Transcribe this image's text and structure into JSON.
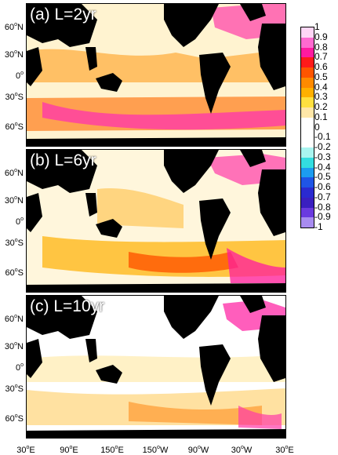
{
  "panels": [
    {
      "label": "(a) L=2yr"
    },
    {
      "label": "(b) L=6yr"
    },
    {
      "label": "(c) L=10yr"
    }
  ],
  "lat_ticks": [
    {
      "deg": "60",
      "hem": "N"
    },
    {
      "deg": "30",
      "hem": "N"
    },
    {
      "deg": "0",
      "hem": ""
    },
    {
      "deg": "30",
      "hem": "S"
    },
    {
      "deg": "60",
      "hem": "S"
    }
  ],
  "lon_ticks": [
    {
      "deg": "30",
      "hem": "E"
    },
    {
      "deg": "90",
      "hem": "E"
    },
    {
      "deg": "150",
      "hem": "E"
    },
    {
      "deg": "150",
      "hem": "W"
    },
    {
      "deg": "90",
      "hem": "W"
    },
    {
      "deg": "30",
      "hem": "W"
    },
    {
      "deg": "30",
      "hem": "E"
    }
  ],
  "colorbar": {
    "labels": [
      "1",
      "0.9",
      "0.8",
      "0.7",
      "0.6",
      "0.5",
      "0.4",
      "0.3",
      "0.2",
      "0.1",
      "0",
      "-0.1",
      "-0.2",
      "-0.3",
      "-0.4",
      "-0.5",
      "-0.6",
      "-0.7",
      "-0.8",
      "-0.9",
      "-1"
    ],
    "colors": [
      "#ffd6f5",
      "#ff6ad0",
      "#ff1aa0",
      "#ff1a1a",
      "#ff5500",
      "#ff8a00",
      "#ffb000",
      "#ffe040",
      "#ffe7a8",
      "#ffffff",
      "#ffffff",
      "#ffffff",
      "#a9f5f0",
      "#33dde0",
      "#1c9cf0",
      "#1f55e6",
      "#2a2ad0",
      "#3a1fc0",
      "#6a3adf",
      "#a88cf0"
    ]
  }
}
